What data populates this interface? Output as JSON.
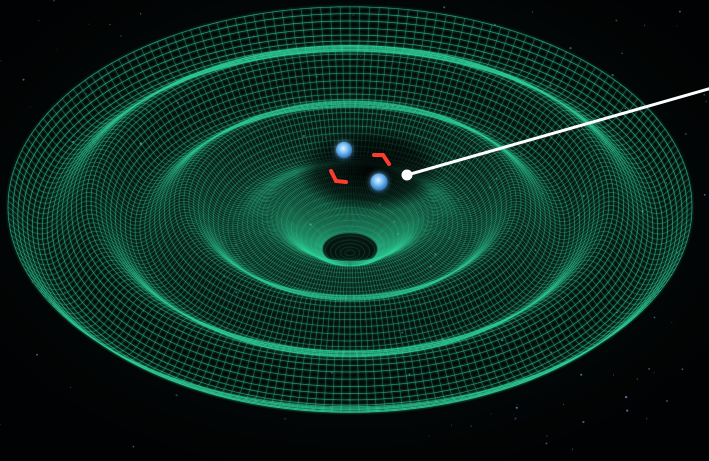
{
  "scene": {
    "subject": "binary-star-gravitational-waves",
    "colors": {
      "background": "#020406",
      "grid": "#2fd39a",
      "grid_glow": "#1a8f6a",
      "star": "#6ab8f5",
      "star_core": "#cfe9ff",
      "arrow": "#ff3b2b",
      "pointer": "#ffffff",
      "starfield": "#5b7fb0"
    },
    "icons": [
      "neutron-star-icon",
      "orbit-arrow-icon",
      "pointer-dot-icon"
    ]
  }
}
